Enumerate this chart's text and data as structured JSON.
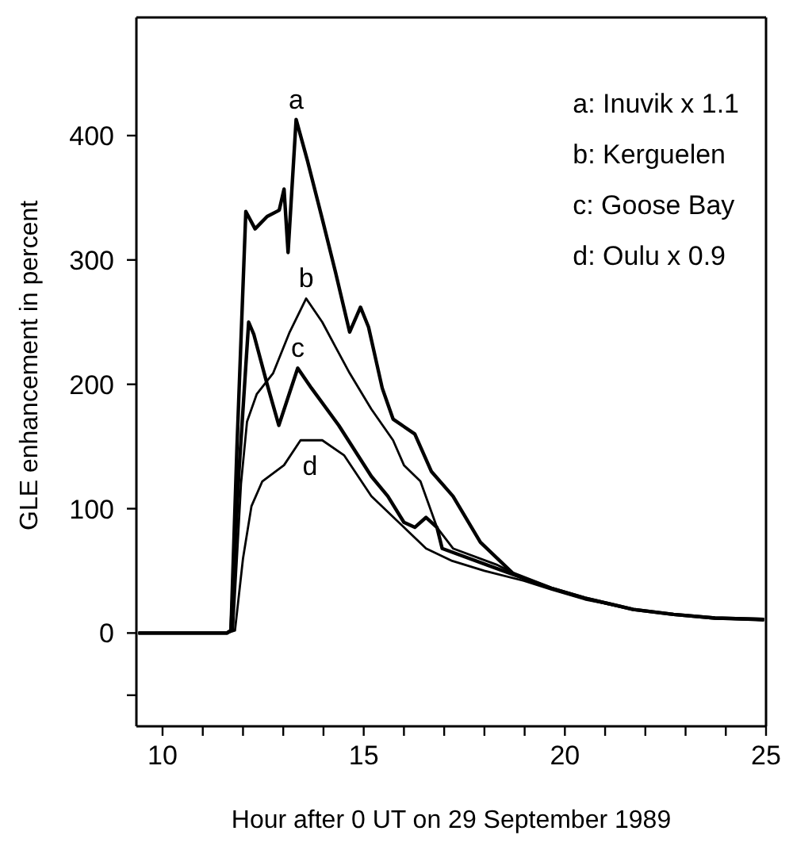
{
  "chart_data": {
    "type": "line",
    "xlabel": "Hour after 0 UT on 29 September 1989",
    "ylabel": "GLE enhancement in percent",
    "xlim": [
      9.35,
      25
    ],
    "ylim": [
      -75,
      495
    ],
    "xticks": [
      {
        "value": 10,
        "label": "10"
      },
      {
        "value": 11,
        "label": null
      },
      {
        "value": 12,
        "label": null
      },
      {
        "value": 13,
        "label": null
      },
      {
        "value": 14,
        "label": null
      },
      {
        "value": 15,
        "label": "15"
      },
      {
        "value": 16,
        "label": null
      },
      {
        "value": 17,
        "label": null
      },
      {
        "value": 18,
        "label": null
      },
      {
        "value": 19,
        "label": null
      },
      {
        "value": 20,
        "label": "20"
      },
      {
        "value": 21,
        "label": null
      },
      {
        "value": 22,
        "label": null
      },
      {
        "value": 23,
        "label": null
      },
      {
        "value": 24,
        "label": null
      },
      {
        "value": 25,
        "label": "25"
      }
    ],
    "yticks": [
      {
        "value": -50,
        "label": null
      },
      0,
      100,
      200,
      300,
      400
    ],
    "grid": false,
    "marker": "none",
    "line_style": "solid",
    "series": [
      {
        "name": "a",
        "color": "#000000",
        "x": [
          9.4,
          10.5,
          11.6,
          11.7,
          11.85,
          12.07,
          12.3,
          12.6,
          12.9,
          13.02,
          13.12,
          13.32,
          13.6,
          13.97,
          14.3,
          14.65,
          14.92,
          15.12,
          15.46,
          15.73,
          16.27,
          16.68,
          17.22,
          17.9,
          18.71,
          19.66,
          20.5,
          21.7,
          22.7,
          23.73,
          24.95
        ],
        "values": [
          0,
          0,
          0,
          2,
          150,
          339,
          325,
          335,
          340,
          357,
          306,
          413,
          380,
          333,
          290,
          242,
          262,
          246,
          197,
          172,
          160,
          130,
          110,
          73,
          48,
          36,
          28,
          19,
          15,
          12,
          11
        ]
      },
      {
        "name": "b",
        "color": "#000000",
        "x": [
          9.4,
          10.5,
          11.6,
          11.75,
          11.95,
          12.1,
          12.34,
          12.75,
          13.16,
          13.57,
          13.97,
          14.3,
          14.65,
          15.19,
          15.73,
          16.0,
          16.41,
          16.82,
          17.22,
          18.3,
          18.98,
          19.66,
          20.5,
          21.7,
          22.7,
          23.73,
          24.95
        ],
        "values": [
          0,
          0,
          0,
          2,
          120,
          170,
          192,
          209,
          242,
          269,
          250,
          230,
          209,
          180,
          155,
          135,
          122,
          85,
          68,
          55,
          44,
          36,
          28,
          19,
          15,
          12,
          11
        ]
      },
      {
        "name": "c",
        "color": "#000000",
        "x": [
          9.4,
          10.5,
          11.6,
          11.7,
          11.9,
          12.14,
          12.27,
          12.6,
          12.89,
          13.36,
          13.7,
          14.38,
          15.19,
          15.6,
          16.0,
          16.27,
          16.55,
          16.82,
          16.95,
          18.3,
          18.98,
          19.66,
          20.5,
          21.7,
          22.7,
          23.73,
          24.95
        ],
        "values": [
          0,
          0,
          0,
          2,
          130,
          250,
          240,
          200,
          167,
          213,
          197,
          167,
          126,
          110,
          89,
          85,
          93,
          85,
          68,
          52,
          44,
          36,
          28,
          19,
          15,
          12,
          11
        ]
      },
      {
        "name": "d",
        "color": "#000000",
        "x": [
          9.4,
          10.5,
          11.6,
          11.8,
          12.0,
          12.21,
          12.48,
          13.02,
          13.43,
          13.97,
          14.51,
          15.19,
          16.0,
          16.55,
          17.2,
          18.0,
          18.98,
          19.66,
          20.5,
          21.7,
          22.7,
          23.73,
          24.95
        ],
        "values": [
          0,
          0,
          0,
          2,
          60,
          102,
          122,
          135,
          155,
          155,
          143,
          110,
          85,
          68,
          58,
          50,
          42,
          35,
          27,
          19,
          15,
          12,
          10
        ]
      }
    ],
    "annotations": [
      "a: Inuvik x 1.1",
      "b: Kerguelen",
      "c: Goose Bay",
      "d: Oulu x 0.9"
    ]
  }
}
